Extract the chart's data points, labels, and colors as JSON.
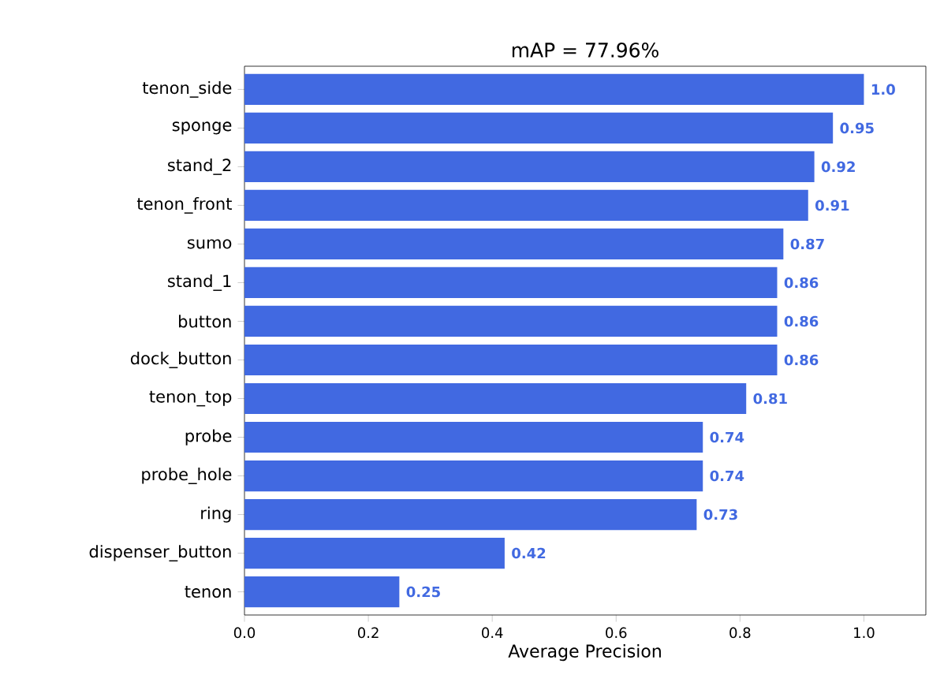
{
  "chart_data": {
    "type": "bar",
    "orientation": "horizontal",
    "title": "mAP = 77.96%",
    "xlabel": "Average Precision",
    "categories": [
      "tenon_side",
      "sponge",
      "stand_2",
      "tenon_front",
      "sumo",
      "stand_1",
      "button",
      "dock_button",
      "tenon_top",
      "probe",
      "probe_hole",
      "ring",
      "dispenser_button",
      "tenon"
    ],
    "values": [
      1.0,
      0.95,
      0.92,
      0.91,
      0.87,
      0.86,
      0.86,
      0.86,
      0.81,
      0.74,
      0.74,
      0.73,
      0.42,
      0.25
    ],
    "value_labels": [
      "1.0",
      "0.95",
      "0.92",
      "0.91",
      "0.87",
      "0.86",
      "0.86",
      "0.86",
      "0.81",
      "0.74",
      "0.74",
      "0.73",
      "0.42",
      "0.25"
    ],
    "color": "#4169e1",
    "xlim": [
      0,
      1.1
    ],
    "xticks": [
      {
        "value": 0,
        "label": "0.0"
      },
      {
        "value": 0.2,
        "label": "0.2"
      },
      {
        "value": 0.4,
        "label": "0.4"
      },
      {
        "value": 0.6,
        "label": "0.6"
      },
      {
        "value": 0.8,
        "label": "0.8"
      },
      {
        "value": 1.0,
        "label": "1.0"
      }
    ],
    "grid": false
  }
}
